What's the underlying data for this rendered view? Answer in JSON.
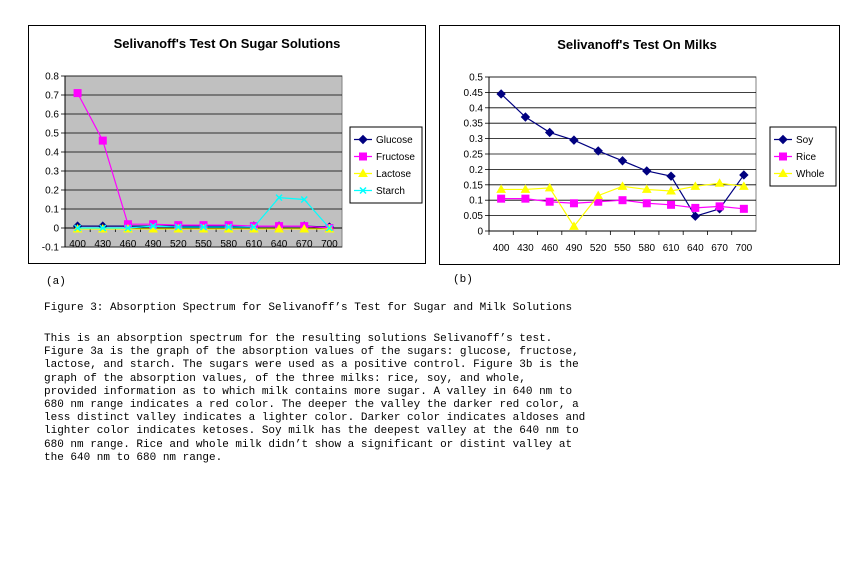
{
  "chart_data": [
    {
      "type": "line",
      "title": "Selivanoff's Test On Sugar Solutions",
      "categories": [
        "400",
        "430",
        "460",
        "490",
        "520",
        "550",
        "580",
        "610",
        "640",
        "670",
        "700"
      ],
      "ylim": [
        -0.1,
        0.8
      ],
      "yticks": [
        "-0.1",
        "0",
        "0.1",
        "0.2",
        "0.3",
        "0.4",
        "0.5",
        "0.6",
        "0.7",
        "0.8"
      ],
      "grid": true,
      "legend_position": "right",
      "plot_background": "#c0c0c0",
      "series": [
        {
          "name": "Glucose",
          "color": "#000080",
          "marker": "diamond",
          "values": [
            0.01,
            0.01,
            0.01,
            0.01,
            0.01,
            0.01,
            0.01,
            0.01,
            0.01,
            0.01,
            0.005
          ]
        },
        {
          "name": "Fructose",
          "color": "#ff00ff",
          "marker": "square",
          "values": [
            0.71,
            0.46,
            0.02,
            0.02,
            0.015,
            0.015,
            0.015,
            0.01,
            0.01,
            0.01,
            0.0
          ]
        },
        {
          "name": "Lactose",
          "color": "#ffff00",
          "marker": "triangle",
          "values": [
            -0.005,
            -0.005,
            -0.005,
            -0.005,
            -0.005,
            -0.005,
            -0.005,
            -0.005,
            -0.005,
            -0.005,
            -0.005
          ]
        },
        {
          "name": "Starch",
          "color": "#00ffff",
          "marker": "x",
          "values": [
            0.0,
            0.0,
            0.0,
            0.01,
            0.005,
            0.005,
            0.005,
            0.005,
            0.16,
            0.15,
            0.0
          ]
        }
      ]
    },
    {
      "type": "line",
      "title": "Selivanoff's Test On Milks",
      "categories": [
        "400",
        "430",
        "460",
        "490",
        "520",
        "550",
        "580",
        "610",
        "640",
        "670",
        "700"
      ],
      "ylim": [
        0,
        0.5
      ],
      "yticks": [
        "0",
        "0.05",
        "0.1",
        "0.15",
        "0.2",
        "0.25",
        "0.3",
        "0.35",
        "0.4",
        "0.45",
        "0.5"
      ],
      "grid": true,
      "legend_position": "right",
      "plot_background": "#ffffff",
      "series": [
        {
          "name": "Soy",
          "color": "#000080",
          "marker": "diamond",
          "values": [
            0.445,
            0.37,
            0.32,
            0.295,
            0.26,
            0.228,
            0.195,
            0.178,
            0.048,
            0.072,
            0.182
          ]
        },
        {
          "name": "Rice",
          "color": "#ff00ff",
          "marker": "square",
          "values": [
            0.105,
            0.105,
            0.095,
            0.09,
            0.095,
            0.1,
            0.09,
            0.085,
            0.075,
            0.08,
            0.072
          ]
        },
        {
          "name": "Whole",
          "color": "#ffff00",
          "marker": "triangle",
          "values": [
            0.135,
            0.135,
            0.14,
            0.015,
            0.115,
            0.145,
            0.135,
            0.13,
            0.145,
            0.155,
            0.145
          ]
        }
      ]
    }
  ],
  "labels": {
    "panel_a": "(a)",
    "panel_b": "(b)"
  },
  "caption": "Figure 3: Absorption Spectrum for Selivanoff’s Test for Sugar and Milk Solutions",
  "body_lines": [
    "This is an absorption spectrum for the resulting solutions Selivanoff’s test.",
    "Figure 3a is the graph of the absorption values of the sugars: glucose, fructose,",
    "lactose, and starch. The sugars were used as a positive control. Figure 3b is the",
    "graph of the absorption values, of the three milks: rice, soy, and whole,",
    "provided information as to which milk contains more sugar. A valley in 640 nm to",
    "680 nm range indicates a red color. The deeper the valley the darker red color, a",
    "less distinct valley indicates a lighter color. Darker color indicates aldoses and",
    "lighter color indicates ketoses. Soy milk has the deepest valley at the 640 nm to",
    "680 nm range. Rice and whole milk didn’t show a significant or distint valley at",
    "the 640 nm to 680 nm range."
  ]
}
